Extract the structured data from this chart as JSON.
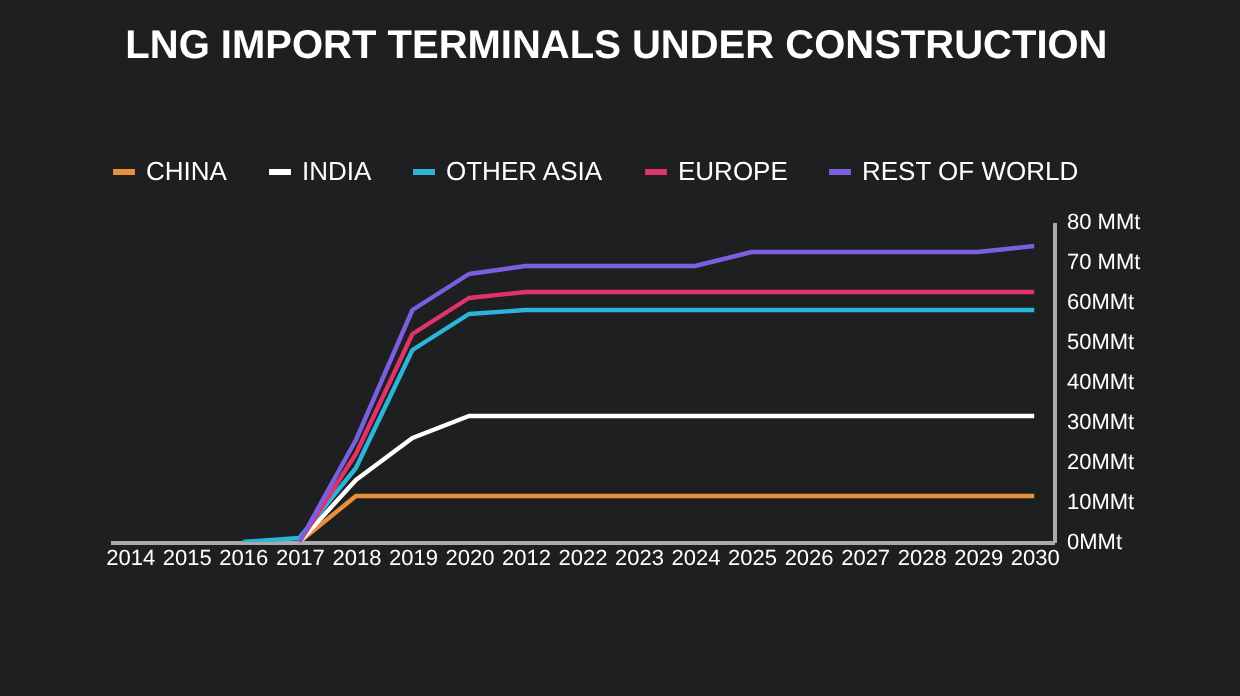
{
  "chart_data": {
    "type": "line",
    "title": "LNG IMPORT TERMINALS UNDER CONSTRUCTION",
    "categories": [
      "2014",
      "2015",
      "2016",
      "2017",
      "2018",
      "2019",
      "2020",
      "2012",
      "2022",
      "2023",
      "2024",
      "2025",
      "2026",
      "2027",
      "2028",
      "2029",
      "2030"
    ],
    "series": [
      {
        "name": "CHINA",
        "color": "#e8913a",
        "values": [
          null,
          null,
          null,
          0,
          11.5,
          11.5,
          11.5,
          11.5,
          11.5,
          11.5,
          11.5,
          11.5,
          11.5,
          11.5,
          11.5,
          11.5,
          11.5
        ]
      },
      {
        "name": "INDIA",
        "color": "#ffffff",
        "values": [
          null,
          null,
          null,
          0,
          15.5,
          26,
          31.5,
          31.5,
          31.5,
          31.5,
          31.5,
          31.5,
          31.5,
          31.5,
          31.5,
          31.5,
          31.5
        ]
      },
      {
        "name": "OTHER ASIA",
        "color": "#2bb5d8",
        "values": [
          null,
          null,
          0,
          1,
          18.5,
          48,
          57,
          58,
          58,
          58,
          58,
          58,
          58,
          58,
          58,
          58,
          58
        ]
      },
      {
        "name": "EUROPE",
        "color": "#e0336b",
        "values": [
          null,
          null,
          null,
          0,
          22,
          52,
          61,
          62.5,
          62.5,
          62.5,
          62.5,
          62.5,
          62.5,
          62.5,
          62.5,
          62.5,
          62.5
        ]
      },
      {
        "name": "REST OF WORLD",
        "color": "#7b5fe0",
        "values": [
          null,
          null,
          null,
          0,
          25.5,
          58,
          67,
          69,
          69,
          69,
          69,
          72.5,
          72.5,
          72.5,
          72.5,
          72.5,
          74
        ]
      }
    ],
    "ylim": [
      0,
      80
    ],
    "yticks": [
      {
        "value": 0,
        "label": "0MMt"
      },
      {
        "value": 10,
        "label": "10MMt"
      },
      {
        "value": 20,
        "label": "20MMt"
      },
      {
        "value": 30,
        "label": "30MMt"
      },
      {
        "value": 40,
        "label": "40MMt"
      },
      {
        "value": 50,
        "label": "50MMt"
      },
      {
        "value": 60,
        "label": "60MMt"
      },
      {
        "value": 70,
        "label": "70 MMt"
      },
      {
        "value": 80,
        "label": "80 MMt"
      }
    ],
    "grid": false,
    "legend": "top left",
    "marker": "none",
    "line_style": "solid"
  }
}
